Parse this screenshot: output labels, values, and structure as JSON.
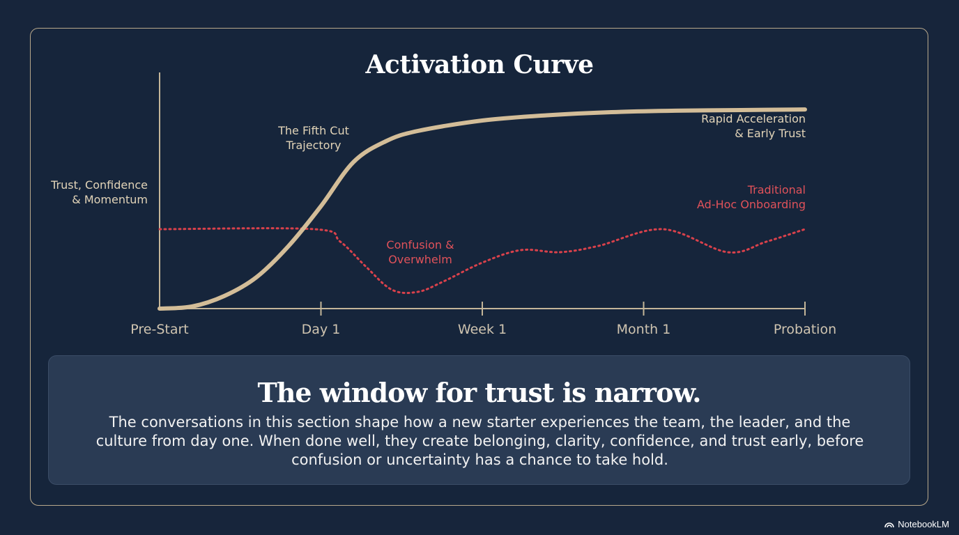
{
  "chart_data": {
    "type": "line",
    "title": "Activation Curve",
    "ylabel": "Trust, Confidence & Momentum",
    "categories": [
      "Pre-Start",
      "Day 1",
      "Week 1",
      "Month 1",
      "Probation"
    ],
    "x": [
      0,
      0.25,
      0.5,
      0.75,
      1
    ],
    "ylim": [
      0,
      1
    ],
    "grid": false,
    "series": [
      {
        "name": "The Fifth Cut Trajectory",
        "style": "solid",
        "color": "#d3bd98",
        "points": [
          [
            0.0,
            0.0
          ],
          [
            0.05,
            0.01
          ],
          [
            0.1,
            0.06
          ],
          [
            0.15,
            0.15
          ],
          [
            0.2,
            0.3
          ],
          [
            0.25,
            0.49
          ],
          [
            0.3,
            0.7
          ],
          [
            0.35,
            0.8
          ],
          [
            0.4,
            0.85
          ],
          [
            0.5,
            0.9
          ],
          [
            0.6,
            0.925
          ],
          [
            0.7,
            0.94
          ],
          [
            0.8,
            0.947
          ],
          [
            0.9,
            0.95
          ],
          [
            1.0,
            0.953
          ]
        ]
      },
      {
        "name": "Traditional Ad-Hoc Onboarding",
        "style": "dotted",
        "color": "#d9414b",
        "points": [
          [
            0.0,
            0.38
          ],
          [
            0.24,
            0.38
          ],
          [
            0.28,
            0.32
          ],
          [
            0.32,
            0.2
          ],
          [
            0.36,
            0.09
          ],
          [
            0.4,
            0.08
          ],
          [
            0.44,
            0.13
          ],
          [
            0.5,
            0.22
          ],
          [
            0.56,
            0.28
          ],
          [
            0.62,
            0.27
          ],
          [
            0.68,
            0.3
          ],
          [
            0.78,
            0.38
          ],
          [
            0.88,
            0.27
          ],
          [
            0.94,
            0.32
          ],
          [
            1.0,
            0.38
          ]
        ]
      }
    ],
    "annotations": {
      "trajectory": [
        "The Fifth Cut",
        "Trajectory"
      ],
      "rapid": [
        "Rapid Acceleration",
        "& Early Trust"
      ],
      "traditional": [
        "Traditional",
        "Ad-Hoc Onboarding"
      ],
      "confusion": [
        "Confusion &",
        "Overwhelm"
      ],
      "ylabel_lines": [
        "Trust, Confidence",
        "& Momentum"
      ]
    }
  },
  "callout": {
    "heading": "The window for trust is narrow.",
    "body": "The conversations in this section shape how a new starter experiences the team, the leader, and the culture from day one. When done well, they create belonging, clarity, confidence, and trust early, before confusion or uncertainty has a chance to take hold."
  },
  "brand": {
    "label": "NotebookLM",
    "icon": "notebooklm-logo-icon"
  },
  "colors": {
    "background": "#17253b",
    "frame_border": "#b9a98c",
    "gold": "#d3bd98",
    "red": "#d9414b",
    "callout_bg": "#2a3b54"
  }
}
